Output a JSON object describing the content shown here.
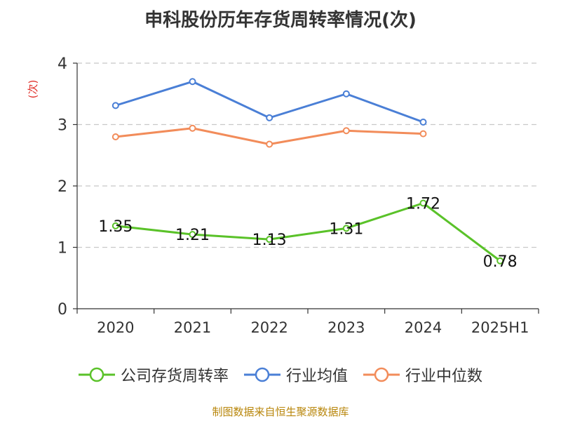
{
  "chart_data": {
    "type": "line",
    "title": "申科股份历年存货周转率情况(次)",
    "ylabel": "(次)",
    "xlabel": "",
    "categories": [
      "2020",
      "2021",
      "2022",
      "2023",
      "2024",
      "2025H1"
    ],
    "ylim": [
      0,
      4
    ],
    "yticks": [
      0,
      1,
      2,
      3,
      4
    ],
    "grid": true,
    "legend_position": "bottom",
    "series": [
      {
        "name": "公司存货周转率",
        "color": "#5ac229",
        "values": [
          1.35,
          1.21,
          1.13,
          1.31,
          1.72,
          0.78
        ],
        "data_labels": [
          "1.35",
          "1.21",
          "1.13",
          "1.31",
          "1.72",
          "0.78"
        ]
      },
      {
        "name": "行业均值",
        "color": "#4a7fd6",
        "values": [
          3.31,
          3.7,
          3.11,
          3.5,
          3.04,
          null
        ]
      },
      {
        "name": "行业中位数",
        "color": "#f28c5a",
        "values": [
          2.8,
          2.94,
          2.68,
          2.9,
          2.85,
          null
        ]
      }
    ]
  },
  "footer": {
    "source": "制图数据来自恒生聚源数据库"
  }
}
